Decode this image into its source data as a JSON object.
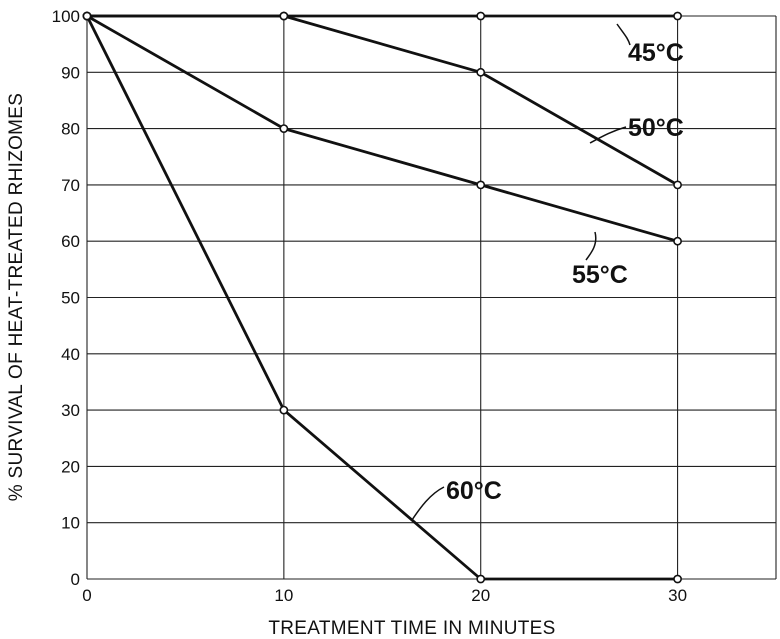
{
  "chart_data": {
    "type": "line",
    "title": "",
    "xlabel": "TREATMENT TIME IN MINUTES",
    "ylabel": "% SURVIVAL OF HEAT-TREATED RHIZOMES",
    "x": [
      0,
      10,
      20,
      30
    ],
    "xlim": [
      0,
      35
    ],
    "ylim": [
      0,
      100
    ],
    "xticks": [
      "0",
      "10",
      "20",
      "30"
    ],
    "yticks": [
      "0",
      "10",
      "20",
      "30",
      "40",
      "50",
      "60",
      "70",
      "80",
      "90",
      "100"
    ],
    "grid": true,
    "series": [
      {
        "name": "45°C",
        "values": [
          100,
          100,
          100,
          100
        ]
      },
      {
        "name": "50°C",
        "values": [
          100,
          100,
          90,
          70
        ]
      },
      {
        "name": "55°C",
        "values": [
          100,
          80,
          70,
          60
        ]
      },
      {
        "name": "60°C",
        "values": [
          100,
          30,
          0,
          0
        ]
      }
    ]
  }
}
